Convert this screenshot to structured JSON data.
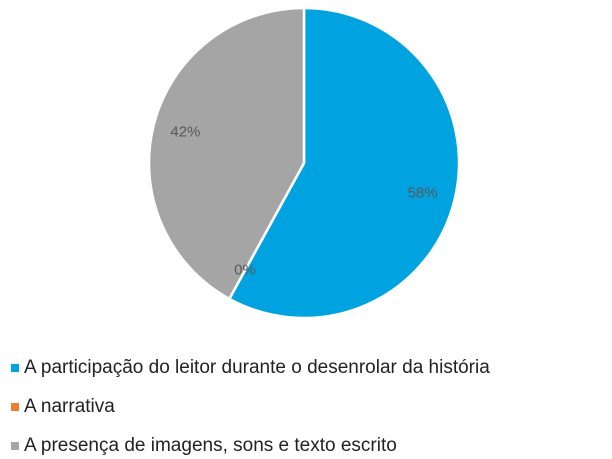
{
  "chart_data": {
    "type": "pie",
    "categories": [
      "A participação do leitor durante o desenrolar da história",
      "A narrativa",
      "A presença de imagens, sons e texto escrito"
    ],
    "values": [
      58,
      0,
      42
    ],
    "value_labels": [
      "58%",
      "0%",
      "42%"
    ],
    "colors": [
      "#00a3df",
      "#ed7d31",
      "#a5a5a5"
    ],
    "legend": "bottom"
  }
}
